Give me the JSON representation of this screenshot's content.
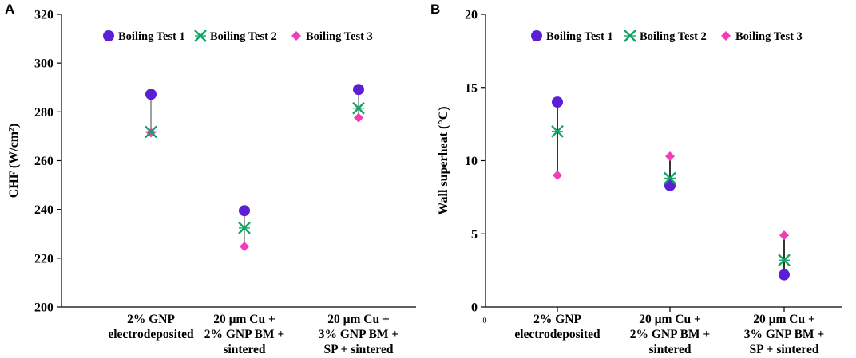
{
  "chart_data": [
    {
      "panel": "A",
      "type": "scatter",
      "title": "",
      "ylabel": "CHF (W/cm²)",
      "xlabel": "",
      "ylim": [
        200,
        320
      ],
      "yticks": [
        200,
        220,
        240,
        260,
        280,
        300,
        320
      ],
      "categories": [
        [
          "2% GNP",
          "electrodeposited"
        ],
        [
          "20 µm Cu +",
          "2% GNP BM +",
          "sintered"
        ],
        [
          "20 µm Cu +",
          "3% GNP BM +",
          "SP + sintered"
        ]
      ],
      "series": [
        {
          "name": "Boiling Test 1",
          "marker": "circle",
          "color": "#5b1fd6",
          "values": [
            287.2,
            239.5,
            289.2
          ]
        },
        {
          "name": "Boiling Test 2",
          "marker": "x",
          "color": "#11a566",
          "values": [
            271.8,
            232.4,
            281.5
          ]
        },
        {
          "name": "Boiling Test 3",
          "marker": "diamond",
          "color": "#ee3fb8",
          "values": [
            271.5,
            224.8,
            277.6
          ]
        }
      ],
      "range_color": "#888888",
      "legend_position": "top"
    },
    {
      "panel": "B",
      "type": "scatter",
      "title": "",
      "ylabel": "Wall superheat (°C)",
      "xlabel": "",
      "ylim": [
        0,
        20
      ],
      "yticks": [
        0,
        5,
        10,
        15,
        20
      ],
      "x_origin_label": "0",
      "categories": [
        [
          "2% GNP",
          "electrodeposited"
        ],
        [
          "20 µm Cu +",
          "2% GNP BM +",
          "sintered"
        ],
        [
          "20 µm Cu +",
          "3% GNP BM +",
          "SP + sintered"
        ]
      ],
      "series": [
        {
          "name": "Boiling Test 1",
          "marker": "circle",
          "color": "#5b1fd6",
          "values": [
            14.0,
            8.3,
            2.2
          ]
        },
        {
          "name": "Boiling Test 2",
          "marker": "x",
          "color": "#11a566",
          "values": [
            12.0,
            8.8,
            3.2
          ]
        },
        {
          "name": "Boiling Test 3",
          "marker": "diamond",
          "color": "#ee3fb8",
          "values": [
            9.0,
            10.3,
            4.9
          ]
        }
      ],
      "range_color": "#000000",
      "legend_position": "top"
    }
  ]
}
